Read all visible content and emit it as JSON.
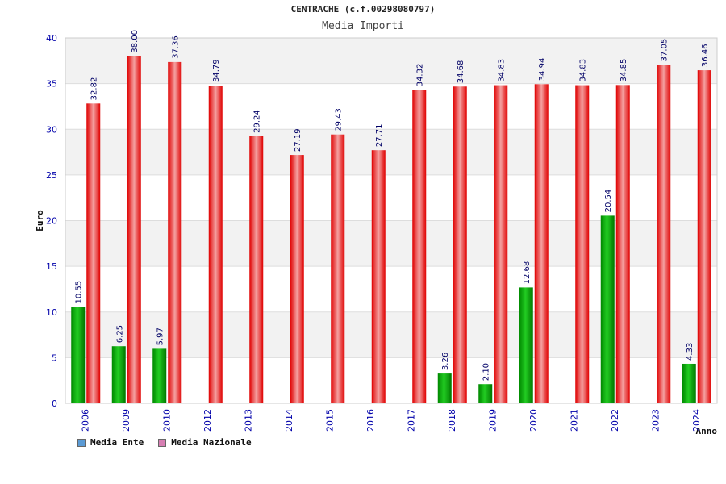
{
  "chart_data": {
    "type": "bar",
    "title": "CENTRACHE (c.f.00298080797)",
    "subtitle": "Media Importi",
    "xlabel": "Anno",
    "ylabel": "Euro",
    "ylim": [
      0,
      40
    ],
    "yticks": [
      0,
      5,
      10,
      15,
      20,
      25,
      30,
      35,
      40
    ],
    "categories": [
      "2006",
      "2009",
      "2010",
      "2012",
      "2013",
      "2014",
      "2015",
      "2016",
      "2017",
      "2018",
      "2019",
      "2020",
      "2021",
      "2022",
      "2023",
      "2024"
    ],
    "series": [
      {
        "name": "Media Ente",
        "color": "#00aa00",
        "legend_color": "#5b9bd5",
        "values": [
          10.55,
          6.25,
          5.97,
          null,
          null,
          null,
          null,
          null,
          null,
          3.26,
          2.1,
          12.68,
          null,
          20.54,
          null,
          4.33
        ],
        "labels": [
          "10.55",
          "6.25",
          "5.97",
          null,
          null,
          null,
          null,
          null,
          null,
          "3.26",
          "2.10",
          "12.68",
          null,
          "20.54",
          null,
          "4.33"
        ]
      },
      {
        "name": "Media Nazionale",
        "color": "#ee1111",
        "legend_color": "#d77fb3",
        "values": [
          32.82,
          38.0,
          37.36,
          34.79,
          29.24,
          27.19,
          29.43,
          27.71,
          34.32,
          34.68,
          34.83,
          34.94,
          34.83,
          34.85,
          37.05,
          36.46
        ],
        "labels": [
          "32.82",
          "38.00",
          "37.36",
          "34.79",
          "29.24",
          "27.19",
          "29.43",
          "27.71",
          "34.32",
          "34.68",
          "34.83",
          "34.94",
          "34.83",
          "34.85",
          "37.05",
          "36.46"
        ]
      }
    ],
    "grid": true,
    "legend_position": "bottom-left"
  }
}
